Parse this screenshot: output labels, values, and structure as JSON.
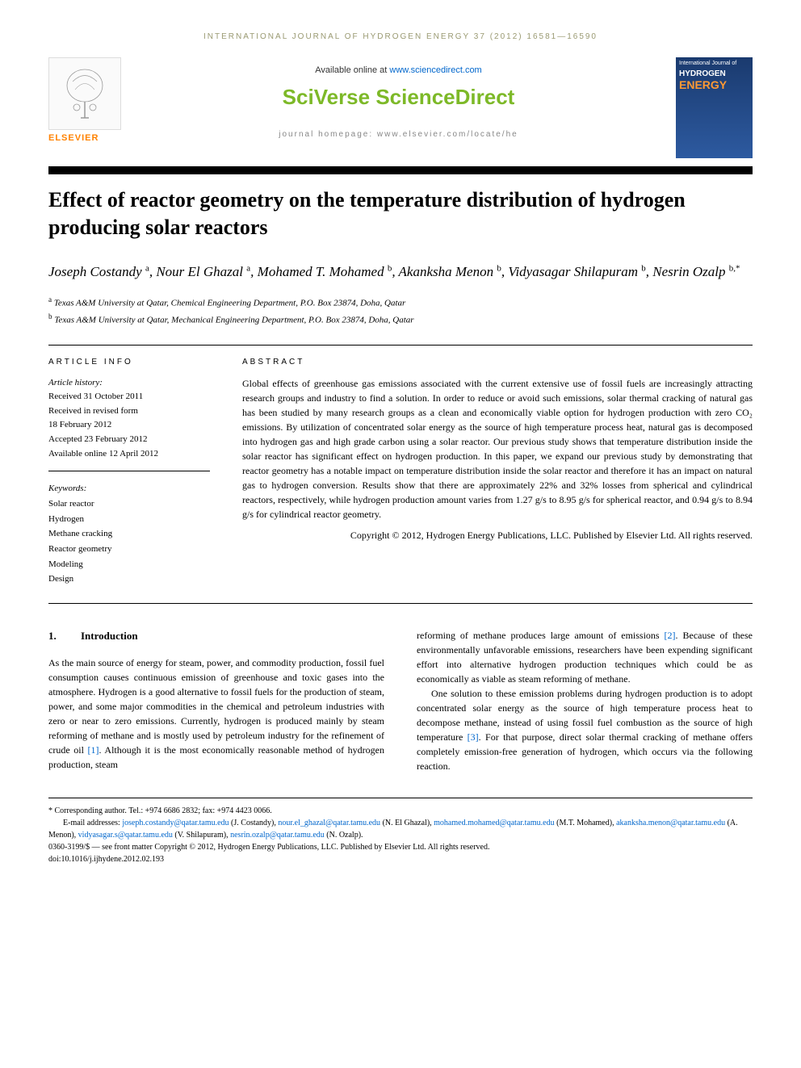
{
  "header": {
    "journal_ref": "INTERNATIONAL JOURNAL OF HYDROGEN ENERGY 37 (2012) 16581—16590",
    "available_text": "Available online at ",
    "available_link": "www.sciencedirect.com",
    "platform": "SciVerse ScienceDirect",
    "homepage_label": "journal homepage: www.elsevier.com/locate/he",
    "publisher": "ELSEVIER",
    "cover_journal": "International Journal of",
    "cover_title1": "HYDROGEN",
    "cover_title2": "ENERGY"
  },
  "title": "Effect of reactor geometry on the temperature distribution of hydrogen producing solar reactors",
  "authors_html": "Joseph Costandy <sup>a</sup>, Nour El Ghazal <sup>a</sup>, Mohamed T. Mohamed <sup>b</sup>, Akanksha Menon <sup>b</sup>, Vidyasagar Shilapuram <sup>b</sup>, Nesrin Ozalp <sup>b,*</sup>",
  "affiliations": {
    "a": "Texas A&M University at Qatar, Chemical Engineering Department, P.O. Box 23874, Doha, Qatar",
    "b": "Texas A&M University at Qatar, Mechanical Engineering Department, P.O. Box 23874, Doha, Qatar"
  },
  "article_info": {
    "label": "ARTICLE INFO",
    "history_head": "Article history:",
    "received": "Received 31 October 2011",
    "revised1": "Received in revised form",
    "revised2": "18 February 2012",
    "accepted": "Accepted 23 February 2012",
    "online": "Available online 12 April 2012",
    "keywords_head": "Keywords:",
    "keywords": [
      "Solar reactor",
      "Hydrogen",
      "Methane cracking",
      "Reactor geometry",
      "Modeling",
      "Design"
    ]
  },
  "abstract": {
    "label": "ABSTRACT",
    "text": "Global effects of greenhouse gas emissions associated with the current extensive use of fossil fuels are increasingly attracting research groups and industry to find a solution. In order to reduce or avoid such emissions, solar thermal cracking of natural gas has been studied by many research groups as a clean and economically viable option for hydrogen production with zero CO₂ emissions. By utilization of concentrated solar energy as the source of high temperature process heat, natural gas is decomposed into hydrogen gas and high grade carbon using a solar reactor. Our previous study shows that temperature distribution inside the solar reactor has significant effect on hydrogen production. In this paper, we expand our previous study by demonstrating that reactor geometry has a notable impact on temperature distribution inside the solar reactor and therefore it has an impact on natural gas to hydrogen conversion. Results show that there are approximately 22% and 32% losses from spherical and cylindrical reactors, respectively, while hydrogen production amount varies from 1.27 g/s to 8.95 g/s for spherical reactor, and 0.94 g/s to 8.94 g/s for cylindrical reactor geometry.",
    "copyright": "Copyright © 2012, Hydrogen Energy Publications, LLC. Published by Elsevier Ltd. All rights reserved."
  },
  "body": {
    "section_num": "1.",
    "section_title": "Introduction",
    "col1_p1a": "As the main source of energy for steam, power, and commodity production, fossil fuel consumption causes continuous emission of greenhouse and toxic gases into the atmosphere. Hydrogen is a good alternative to fossil fuels for the production of steam, power, and some major commodities in the chemical and petroleum industries with zero or near to zero emissions. Currently, hydrogen is produced mainly by steam reforming of methane and is mostly used by petroleum industry for the refinement of crude oil ",
    "ref1": "[1]",
    "col1_p1b": ". Although it is the most economically reasonable method of hydrogen production, steam",
    "col2_p1a": "reforming of methane produces large amount of emissions ",
    "ref2": "[2]",
    "col2_p1b": ". Because of these environmentally unfavorable emissions, researchers have been expending significant effort into alternative hydrogen production techniques which could be as economically as viable as steam reforming of methane.",
    "col2_p2a": "One solution to these emission problems during hydrogen production is to adopt concentrated solar energy as the source of high temperature process heat to decompose methane, instead of using fossil fuel combustion as the source of high temperature ",
    "ref3": "[3]",
    "col2_p2b": ". For that purpose, direct solar thermal cracking of methane offers completely emission-free generation of hydrogen, which occurs via the following reaction."
  },
  "footer": {
    "corresponding": "* Corresponding author. Tel.: +974 6686 2832; fax: +974 4423 0066.",
    "email_label": "E-mail addresses: ",
    "emails": [
      {
        "addr": "joseph.costandy@qatar.tamu.edu",
        "name": "(J. Costandy)"
      },
      {
        "addr": "nour.el_ghazal@qatar.tamu.edu",
        "name": "(N. El Ghazal)"
      },
      {
        "addr": "mohamed.mohamed@qatar.tamu.edu",
        "name": "(M.T. Mohamed)"
      },
      {
        "addr": "akanksha.menon@qatar.tamu.edu",
        "name": "(A. Menon)"
      },
      {
        "addr": "vidyasagar.s@qatar.tamu.edu",
        "name": "(V. Shilapuram)"
      },
      {
        "addr": "nesrin.ozalp@qatar.tamu.edu",
        "name": "(N. Ozalp)"
      }
    ],
    "issn_line": "0360-3199/$ — see front matter Copyright © 2012, Hydrogen Energy Publications, LLC. Published by Elsevier Ltd. All rights reserved.",
    "doi": "doi:10.1016/j.ijhydene.2012.02.193"
  }
}
